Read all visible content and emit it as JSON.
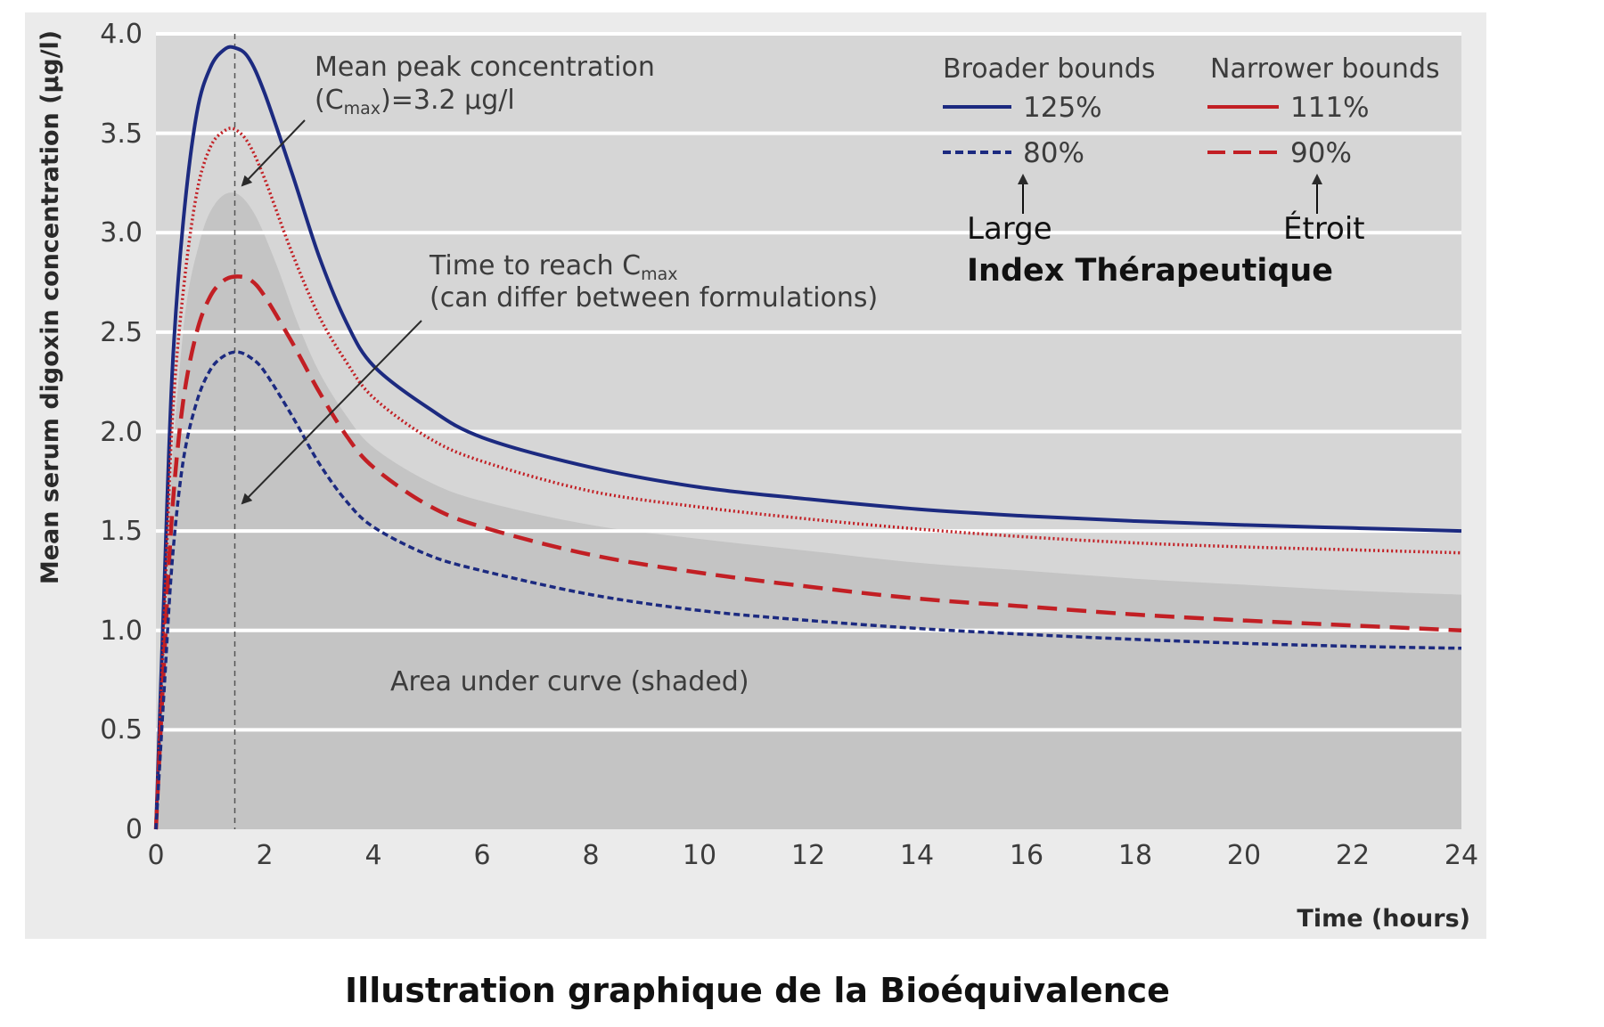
{
  "caption": "Illustration graphique de la Bioéquivalence",
  "colors": {
    "background": "#ebebeb",
    "plot_area": "#d6d6d6",
    "auc_shade": "#c4c4c4",
    "gridline": "#ffffff",
    "blue": "#1c2a80",
    "red": "#c21f24",
    "annotation_text": "#3c3c3c"
  },
  "annotations": {
    "cmax_line1": "Mean peak concentration",
    "cmax_line2_pre": "(C",
    "cmax_line2_sub": "max",
    "cmax_line2_post": ")=3.2 µg/l",
    "tmax_line1_pre": "Time to reach C",
    "tmax_line1_sub": "max",
    "tmax_line2": "(can differ between formulations)",
    "auc_label": "Area under curve (shaded)"
  },
  "legend": {
    "broader_header": "Broader bounds",
    "narrower_header": "Narrower bounds",
    "broader_upper": "125%",
    "broader_lower": "80%",
    "narrower_upper": "111%",
    "narrower_lower": "90%",
    "large_label": "Large",
    "etroit_label": "Étroit",
    "index_label": "Index Thérapeutique"
  },
  "chart_data": {
    "type": "line",
    "title": "",
    "xlabel": "Time (hours)",
    "ylabel": "Mean serum digoxin concentration (µg/l)",
    "xlim": [
      0,
      24
    ],
    "ylim": [
      0,
      4.0
    ],
    "x_ticks": [
      "0",
      "2",
      "4",
      "6",
      "8",
      "10",
      "12",
      "14",
      "16",
      "18",
      "20",
      "22",
      "24"
    ],
    "y_ticks": [
      "0",
      "0.5",
      "1.0",
      "1.5",
      "2.0",
      "2.5",
      "3.0",
      "3.5",
      "4.0"
    ],
    "grid": "horizontal",
    "legend_position": "top-right",
    "tmax_marker_x": 1.45,
    "series": [
      {
        "name": "125%",
        "color": "#1c2a80",
        "style": "solid",
        "x": [
          0,
          0.15,
          0.3,
          0.5,
          0.75,
          1.0,
          1.25,
          1.45,
          1.7,
          2.0,
          2.5,
          3.0,
          3.5,
          4.0,
          5.0,
          6.0,
          8.0,
          10.0,
          12.0,
          14.0,
          16.0,
          18.0,
          20.0,
          22.0,
          24.0
        ],
        "y": [
          0,
          1.2,
          2.3,
          3.05,
          3.6,
          3.83,
          3.92,
          3.93,
          3.88,
          3.7,
          3.3,
          2.88,
          2.55,
          2.33,
          2.12,
          1.97,
          1.82,
          1.72,
          1.66,
          1.61,
          1.575,
          1.55,
          1.53,
          1.515,
          1.5
        ]
      },
      {
        "name": "111%",
        "color": "#c21f24",
        "style": "dotted",
        "x": [
          0,
          0.15,
          0.3,
          0.5,
          0.75,
          1.0,
          1.25,
          1.45,
          1.7,
          2.0,
          2.5,
          3.0,
          3.5,
          4.0,
          5.0,
          6.0,
          8.0,
          10.0,
          12.0,
          14.0,
          16.0,
          18.0,
          20.0,
          22.0,
          24.0
        ],
        "y": [
          0,
          1.05,
          2.05,
          2.7,
          3.2,
          3.43,
          3.51,
          3.52,
          3.45,
          3.27,
          2.9,
          2.58,
          2.35,
          2.17,
          1.97,
          1.85,
          1.7,
          1.62,
          1.56,
          1.51,
          1.47,
          1.44,
          1.42,
          1.405,
          1.39
        ]
      },
      {
        "name": "90%",
        "color": "#c21f24",
        "style": "dashed",
        "x": [
          0,
          0.15,
          0.3,
          0.5,
          0.75,
          1.0,
          1.25,
          1.5,
          1.75,
          2.0,
          2.5,
          3.0,
          3.5,
          4.0,
          5.0,
          6.0,
          8.0,
          10.0,
          12.0,
          14.0,
          16.0,
          18.0,
          20.0,
          22.0,
          24.0
        ],
        "y": [
          0,
          0.85,
          1.6,
          2.15,
          2.5,
          2.68,
          2.76,
          2.78,
          2.76,
          2.68,
          2.45,
          2.2,
          1.98,
          1.82,
          1.63,
          1.52,
          1.38,
          1.29,
          1.22,
          1.16,
          1.12,
          1.08,
          1.05,
          1.025,
          1.0
        ]
      },
      {
        "name": "80%",
        "color": "#1c2a80",
        "style": "dotted-dense",
        "x": [
          0,
          0.15,
          0.3,
          0.5,
          0.75,
          1.0,
          1.25,
          1.5,
          1.75,
          2.0,
          2.5,
          3.0,
          3.5,
          4.0,
          5.0,
          6.0,
          8.0,
          10.0,
          12.0,
          14.0,
          16.0,
          18.0,
          20.0,
          22.0,
          24.0
        ],
        "y": [
          0,
          0.7,
          1.35,
          1.85,
          2.15,
          2.31,
          2.38,
          2.4,
          2.37,
          2.3,
          2.08,
          1.84,
          1.65,
          1.52,
          1.38,
          1.3,
          1.18,
          1.1,
          1.05,
          1.01,
          0.98,
          0.955,
          0.935,
          0.92,
          0.91
        ]
      },
      {
        "name": "",
        "role": "area-under-curve",
        "color": "#c4c4c4",
        "style": "fill",
        "x": [
          0,
          0.2,
          0.5,
          0.8,
          1.1,
          1.45,
          1.8,
          2.2,
          2.6,
          3.0,
          3.5,
          4.0,
          5.0,
          6.0,
          8.0,
          10.0,
          12.0,
          14.0,
          16.0,
          18.0,
          20.0,
          22.0,
          24.0
        ],
        "y": [
          0,
          1.4,
          2.5,
          2.95,
          3.15,
          3.2,
          3.1,
          2.85,
          2.55,
          2.3,
          2.08,
          1.92,
          1.75,
          1.65,
          1.53,
          1.46,
          1.4,
          1.34,
          1.3,
          1.26,
          1.23,
          1.2,
          1.18
        ]
      }
    ]
  }
}
